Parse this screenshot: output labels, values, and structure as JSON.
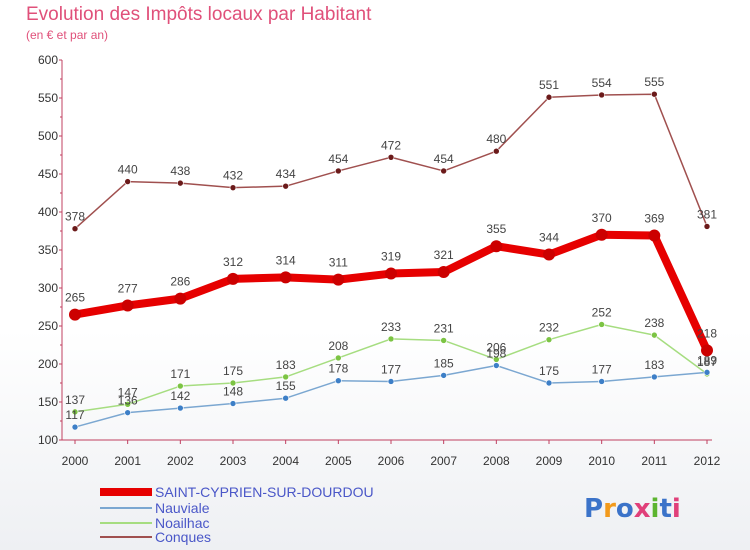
{
  "header": {
    "title": "Evolution des Impôts locaux par Habitant",
    "subtitle": "(en € et par an)"
  },
  "brand": {
    "logo_text": "Proxiti",
    "letter_colors": [
      "#3b73c9",
      "#f29a1c",
      "#3b73c9",
      "#e0407a",
      "#5cb530",
      "#3b73c9",
      "#e0407a"
    ]
  },
  "chart_data": {
    "type": "line",
    "title": "Evolution des Impôts locaux par Habitant",
    "subtitle": "(en € et par an)",
    "xlabel": "",
    "ylabel": "",
    "x": [
      2000,
      2001,
      2002,
      2003,
      2004,
      2005,
      2006,
      2007,
      2008,
      2009,
      2010,
      2011,
      2012
    ],
    "ylim": [
      100,
      600
    ],
    "yticks": [
      100,
      150,
      200,
      250,
      300,
      350,
      400,
      450,
      500,
      550,
      600
    ],
    "grid": false,
    "legend_position": "bottom-left",
    "series": [
      {
        "name": "SAINT-CYPRIEN-SUR-DOURDOU",
        "color": "#e60000",
        "marker_color": "#cc0000",
        "width": 8,
        "values": [
          265,
          277,
          286,
          312,
          314,
          311,
          319,
          321,
          355,
          344,
          370,
          369,
          218
        ]
      },
      {
        "name": "Nauviale",
        "color": "#7ba7d1",
        "marker_color": "#3d7fc7",
        "width": 1.5,
        "values": [
          117,
          136,
          142,
          148,
          155,
          178,
          177,
          185,
          198,
          175,
          177,
          183,
          189
        ]
      },
      {
        "name": "Noailhac",
        "color": "#a6dd80",
        "marker_color": "#7cc443",
        "width": 1.5,
        "values": [
          137,
          147,
          171,
          175,
          183,
          208,
          233,
          231,
          206,
          232,
          252,
          238,
          187
        ]
      },
      {
        "name": "Conques",
        "color": "#a0504f",
        "marker_color": "#6b1a1a",
        "width": 1.5,
        "values": [
          378,
          440,
          438,
          432,
          434,
          454,
          472,
          454,
          480,
          551,
          554,
          555,
          381
        ]
      }
    ]
  }
}
